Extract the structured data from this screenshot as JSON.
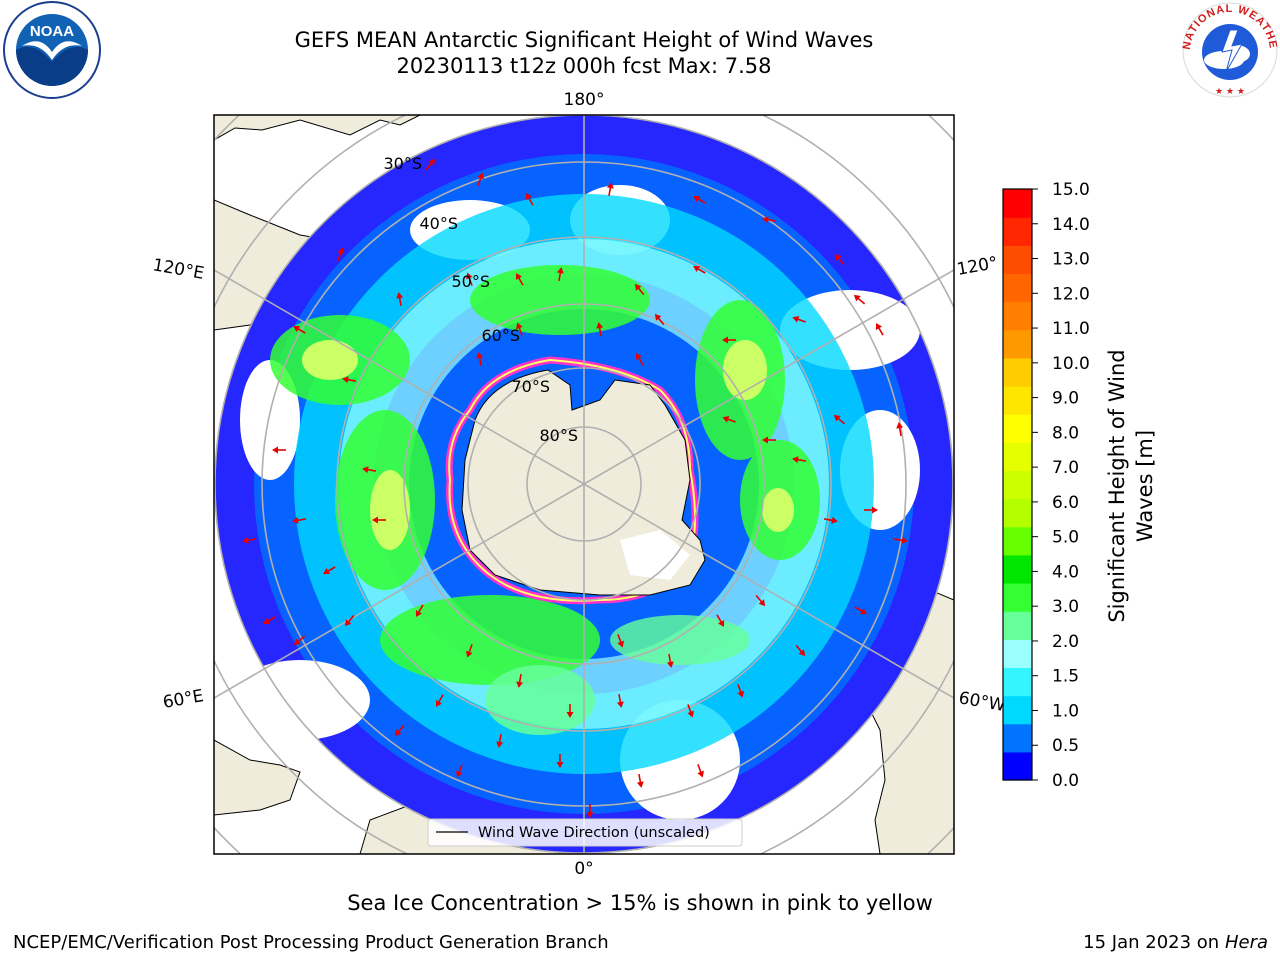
{
  "header": {
    "title_line1": "GEFS MEAN Antarctic Significant Height of Wind Waves",
    "title_line2": "20230113 t12z 000h fcst   Max: 7.58"
  },
  "logos": {
    "noaa": {
      "text": "NOAA",
      "icon": "noaa-logo-icon"
    },
    "nws": {
      "text": "NATIONAL WEATHER SERVICE",
      "icon": "nws-logo-icon"
    }
  },
  "map": {
    "projection": "south-polar-stereographic",
    "longitude_labels": [
      "180°",
      "120°E",
      "120°",
      "60°E",
      "60°W",
      "0°"
    ],
    "latitude_labels": [
      "30°S",
      "40°S",
      "50°S",
      "60°S",
      "70°S",
      "80°S"
    ],
    "legend_label": "Wind Wave Direction (unscaled)",
    "colors": {
      "land": "#efecdc",
      "ocean_missing": "#ffffff",
      "grid": "#b0b0b0",
      "arrow": "#e60000",
      "sea_ice": [
        "#ff33cc",
        "#ffff00"
      ]
    }
  },
  "colorbar": {
    "label_line1": "Significant Height of Wind",
    "label_line2": "Waves [m]",
    "ticks": [
      "0.0",
      "0.5",
      "1.0",
      "1.5",
      "2.0",
      "3.0",
      "4.0",
      "5.0",
      "6.0",
      "7.0",
      "8.0",
      "9.0",
      "10.0",
      "11.0",
      "12.0",
      "13.0",
      "14.0",
      "15.0"
    ],
    "colors": [
      "#0000ff",
      "#0073ff",
      "#00d9ff",
      "#33f5ff",
      "#99ffff",
      "#66ff99",
      "#33ff33",
      "#00e600",
      "#66ff00",
      "#b3ff00",
      "#ccff00",
      "#e6ff00",
      "#ffff00",
      "#ffe600",
      "#ffcc00",
      "#ff9900",
      "#ff8000",
      "#ff6600",
      "#ff4d00",
      "#ff2600",
      "#ff0000"
    ]
  },
  "footer": {
    "ice_note": "Sea Ice Concentration > 15% is shown in pink to yellow",
    "left": "NCEP/EMC/Verification Post Processing Product Generation Branch",
    "right_date": "15 Jan 2023 on ",
    "right_host": "Hera"
  }
}
